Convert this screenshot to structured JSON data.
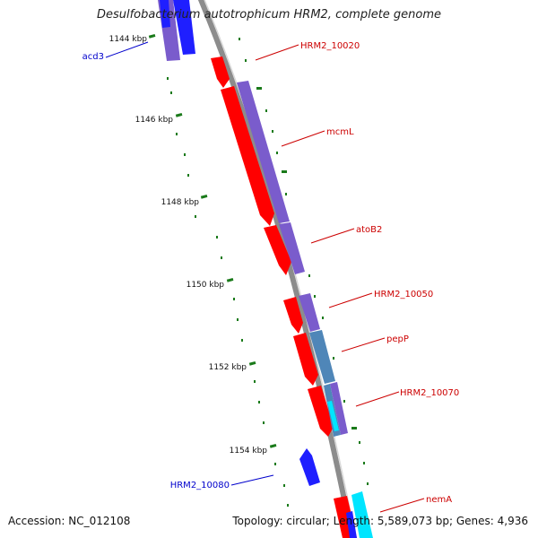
{
  "title": "Desulfobacterium autotrophicum HRM2, complete genome",
  "footer": {
    "accession": "Accession: NC_012108",
    "summary": "Topology: circular; Length: 5,589,073 bp; Genes: 4,936"
  },
  "colors": {
    "backbone": "#8c8c8c",
    "tick": "#1a7a1a",
    "forward_label": "#cc0000",
    "reverse_label": "#0000cc",
    "cds_red": "#ff0000",
    "cds_purple": "#7a5ccc",
    "cds_blue": "#1f1fff",
    "cds_steel": "#4f86b8",
    "cds_cyan": "#00e5ff"
  },
  "scale_labels": [
    "1144 kbp",
    "1146 kbp",
    "1148 kbp",
    "1150 kbp",
    "1152 kbp",
    "1154 kbp"
  ],
  "gene_labels": [
    {
      "text": "HRM2_10020",
      "strand": "forward"
    },
    {
      "text": "mcmL",
      "strand": "forward"
    },
    {
      "text": "atoB2",
      "strand": "forward"
    },
    {
      "text": "HRM2_10050",
      "strand": "forward"
    },
    {
      "text": "pepP",
      "strand": "forward"
    },
    {
      "text": "HRM2_10070",
      "strand": "forward"
    },
    {
      "text": "nemA",
      "strand": "forward"
    },
    {
      "text": "acd3",
      "strand": "reverse"
    },
    {
      "text": "HRM2_10080",
      "strand": "reverse"
    }
  ]
}
